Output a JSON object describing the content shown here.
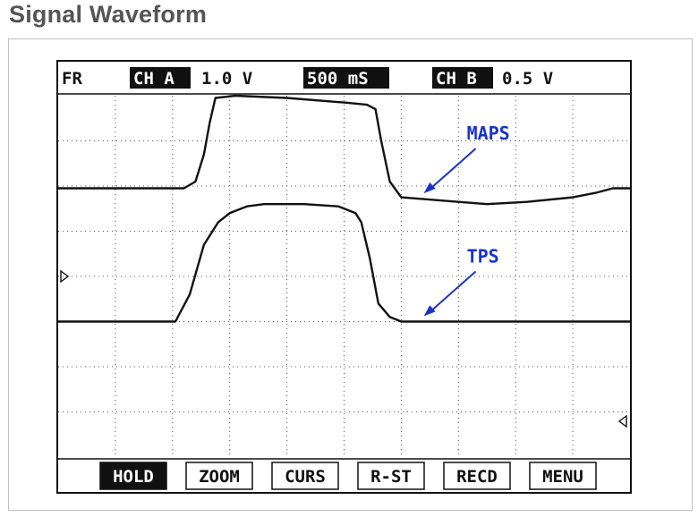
{
  "page": {
    "title": "Signal Waveform"
  },
  "header": {
    "mode": "FR",
    "ch_a_label": "CH A",
    "ch_a_scale": "1.0 V",
    "timebase": "500 mS",
    "ch_b_label": "CH B",
    "ch_b_scale": "0.5 V"
  },
  "softkeys": [
    {
      "label": "HOLD",
      "active": true
    },
    {
      "label": "ZOOM",
      "active": false
    },
    {
      "label": "CURS",
      "active": false
    },
    {
      "label": "R-ST",
      "active": false
    },
    {
      "label": "RECD",
      "active": false
    },
    {
      "label": "MENU",
      "active": false
    }
  ],
  "colors": {
    "trace": "#111111",
    "annotation": "#1a33cc",
    "grid": "#555555"
  },
  "chart_data": {
    "type": "line",
    "grid": true,
    "x_divisions": 10,
    "y_divisions": 8,
    "xlim": [
      0,
      10
    ],
    "ylim": [
      0,
      8
    ],
    "annotations": [
      {
        "text": "MAPS",
        "series": "MAPS",
        "at_x": 6.3
      },
      {
        "text": "TPS",
        "series": "TPS",
        "at_x": 6.3
      }
    ],
    "series": [
      {
        "name": "MAPS",
        "x": [
          0,
          2.2,
          2.4,
          2.55,
          2.65,
          2.75,
          3.1,
          4.0,
          5.0,
          5.4,
          5.55,
          5.65,
          5.8,
          6.0,
          7.0,
          7.5,
          8.2,
          9.0,
          9.4,
          9.7,
          10
        ],
        "y": [
          5.95,
          5.95,
          6.1,
          6.7,
          7.4,
          7.95,
          8.0,
          7.95,
          7.85,
          7.8,
          7.7,
          7.0,
          6.1,
          5.75,
          5.65,
          5.6,
          5.65,
          5.75,
          5.85,
          5.95,
          5.95
        ]
      },
      {
        "name": "TPS",
        "x": [
          0,
          2.05,
          2.3,
          2.55,
          2.8,
          3.0,
          3.3,
          3.6,
          4.3,
          4.9,
          5.2,
          5.3,
          5.45,
          5.6,
          5.8,
          6.0,
          7.0,
          8.0,
          9.0,
          10
        ],
        "y": [
          3.0,
          3.0,
          3.6,
          4.7,
          5.2,
          5.4,
          5.55,
          5.6,
          5.6,
          5.55,
          5.4,
          5.2,
          4.4,
          3.4,
          3.1,
          3.0,
          3.0,
          3.0,
          3.0,
          3.0
        ]
      }
    ]
  }
}
